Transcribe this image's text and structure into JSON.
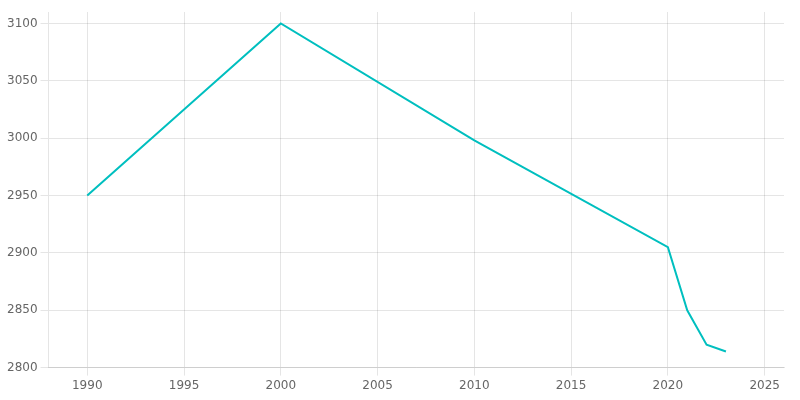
{
  "chart_data": {
    "type": "line",
    "x": [
      1990,
      2000,
      2010,
      2020,
      2021,
      2022,
      2023
    ],
    "values": [
      2950,
      3100,
      2998,
      2905,
      2850,
      2820,
      2814
    ],
    "color": "#00BFBF",
    "xlim": [
      1988,
      2026
    ],
    "ylim": [
      2800,
      3110
    ],
    "xticks": [
      1990,
      1995,
      2000,
      2005,
      2010,
      2015,
      2020,
      2025
    ],
    "yticks": [
      2800,
      2850,
      2900,
      2950,
      3000,
      3050,
      3100
    ],
    "grid": true
  }
}
